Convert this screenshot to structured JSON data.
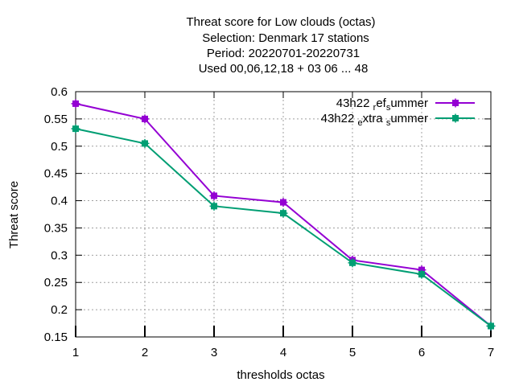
{
  "chart_data": {
    "type": "line",
    "title_lines": [
      "Threat score  for Low clouds (octas)",
      "Selection: Denmark      17 stations",
      "Period: 20220701-20220731",
      "Used  00,06,12,18  + 03 06 ... 48"
    ],
    "xlabel": "thresholds octas",
    "ylabel": "Threat score",
    "x": [
      1,
      2,
      3,
      4,
      5,
      6,
      7
    ],
    "xlim": [
      1,
      7
    ],
    "ylim": [
      0.15,
      0.6
    ],
    "yticks": [
      "0.15",
      "0.2",
      "0.25",
      "0.3",
      "0.35",
      "0.4",
      "0.45",
      "0.5",
      "0.55",
      "0.6"
    ],
    "xticks": [
      "1",
      "2",
      "3",
      "4",
      "5",
      "6",
      "7"
    ],
    "grid": true,
    "legend_position": "top-right",
    "series": [
      {
        "name": "43h22_ref_summer",
        "legend": {
          "a": "43h22 ",
          "s1": "r",
          "b": "ef",
          "s2": "s",
          "c": "ummer"
        },
        "color": "#9400d3",
        "values": [
          0.578,
          0.55,
          0.409,
          0.397,
          0.291,
          0.273,
          0.17
        ]
      },
      {
        "name": "43h22_extra_summer",
        "legend": {
          "a": "43h22 ",
          "s1": "e",
          "b": "xtra ",
          "s2": "s",
          "c": "ummer"
        },
        "color": "#009e73",
        "values": [
          0.532,
          0.505,
          0.39,
          0.377,
          0.286,
          0.265,
          0.17
        ]
      }
    ]
  }
}
